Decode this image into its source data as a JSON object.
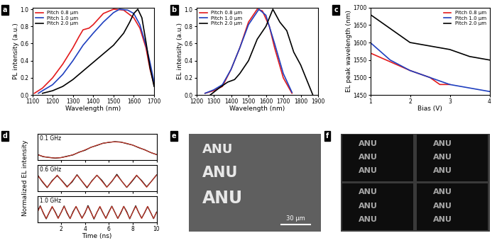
{
  "chart_data": [
    {
      "type": "line",
      "panel": "a",
      "xlabel": "Wavelength (nm)",
      "ylabel": "PL intensity (a.u.)",
      "xlim": [
        1100,
        1700
      ],
      "xticks": [
        1100,
        1200,
        1300,
        1400,
        1500,
        1600,
        1700
      ],
      "ylim": [
        0.0,
        1.02
      ],
      "yticks": [
        0.0,
        0.2,
        0.4,
        0.6,
        0.8,
        1.0
      ],
      "legend": "upper left",
      "series": [
        {
          "name": "Pitch 0.8 μm",
          "color": "#e31a1c",
          "x": [
            1110,
            1150,
            1200,
            1250,
            1300,
            1330,
            1350,
            1380,
            1400,
            1450,
            1500,
            1550,
            1600,
            1630,
            1660,
            1680,
            1700
          ],
          "values": [
            0.02,
            0.08,
            0.2,
            0.36,
            0.55,
            0.68,
            0.76,
            0.78,
            0.82,
            0.95,
            1.0,
            0.99,
            0.9,
            0.78,
            0.55,
            0.3,
            0.12
          ]
        },
        {
          "name": "Pitch 1.0 μm",
          "color": "#1f3fbf",
          "x": [
            1130,
            1150,
            1200,
            1250,
            1300,
            1350,
            1400,
            1450,
            1500,
            1530,
            1570,
            1600,
            1630,
            1660,
            1680,
            1700
          ],
          "values": [
            0.02,
            0.05,
            0.12,
            0.24,
            0.4,
            0.58,
            0.72,
            0.85,
            0.96,
            1.0,
            0.99,
            0.95,
            0.82,
            0.58,
            0.38,
            0.15
          ]
        },
        {
          "name": "Pitch 2.0 μm",
          "color": "#000000",
          "x": [
            1150,
            1200,
            1250,
            1300,
            1350,
            1400,
            1450,
            1500,
            1550,
            1580,
            1600,
            1620,
            1640,
            1660,
            1680,
            1700
          ],
          "values": [
            0.02,
            0.05,
            0.1,
            0.18,
            0.28,
            0.38,
            0.48,
            0.58,
            0.72,
            0.85,
            0.95,
            1.0,
            0.9,
            0.62,
            0.32,
            0.1
          ]
        }
      ]
    },
    {
      "type": "line",
      "panel": "b",
      "xlabel": "Wavelength (nm)",
      "ylabel": "EL intensity (a.u.)",
      "xlim": [
        1200,
        1900
      ],
      "xticks": [
        1200,
        1300,
        1400,
        1500,
        1600,
        1700,
        1800,
        1900
      ],
      "ylim": [
        0.0,
        1.02
      ],
      "yticks": [
        0.0,
        0.2,
        0.4,
        0.6,
        0.8,
        1.0
      ],
      "legend": "upper left",
      "series": [
        {
          "name": "Pitch 0.8 μm",
          "color": "#e31a1c",
          "x": [
            1250,
            1300,
            1350,
            1400,
            1450,
            1500,
            1550,
            1580,
            1620,
            1650,
            1700,
            1750
          ],
          "values": [
            0.02,
            0.05,
            0.1,
            0.3,
            0.55,
            0.85,
            1.0,
            0.98,
            0.8,
            0.55,
            0.2,
            0.02
          ]
        },
        {
          "name": "Pitch 1.0 μm",
          "color": "#1f3fbf",
          "x": [
            1250,
            1300,
            1350,
            1400,
            1450,
            1500,
            1560,
            1600,
            1650,
            1700,
            1750
          ],
          "values": [
            0.02,
            0.06,
            0.12,
            0.3,
            0.55,
            0.82,
            1.0,
            0.93,
            0.6,
            0.25,
            0.03
          ]
        },
        {
          "name": "Pitch 2.0 μm",
          "color": "#000000",
          "x": [
            1280,
            1330,
            1380,
            1420,
            1450,
            1500,
            1550,
            1600,
            1640,
            1680,
            1720,
            1760,
            1800,
            1850,
            1870
          ],
          "values": [
            0.0,
            0.08,
            0.15,
            0.18,
            0.25,
            0.4,
            0.65,
            0.8,
            1.0,
            0.85,
            0.75,
            0.5,
            0.35,
            0.1,
            0.0
          ]
        }
      ]
    },
    {
      "type": "line",
      "panel": "c",
      "xlabel": "Bias (V)",
      "ylabel": "EL peak wavelength (nm)",
      "xlim": [
        1,
        4
      ],
      "xticks": [
        1,
        2,
        3,
        4
      ],
      "ylim": [
        1450,
        1700
      ],
      "yticks": [
        1450,
        1500,
        1550,
        1600,
        1650,
        1700
      ],
      "legend": "upper right",
      "series": [
        {
          "name": "Pitch 0.8 μm",
          "color": "#e31a1c",
          "x": [
            1,
            1.5,
            2,
            2.5,
            2.75,
            3
          ],
          "values": [
            1570,
            1545,
            1520,
            1500,
            1480,
            1480
          ]
        },
        {
          "name": "Pitch 1.0 μm",
          "color": "#1f3fbf",
          "x": [
            1,
            1.5,
            2,
            2.5,
            3,
            3.5,
            4
          ],
          "values": [
            1600,
            1550,
            1520,
            1500,
            1480,
            1470,
            1460
          ]
        },
        {
          "name": "Pitch 2.0 μm",
          "color": "#000000",
          "x": [
            1,
            1.5,
            2,
            2.5,
            3,
            3.5,
            4
          ],
          "values": [
            1680,
            1640,
            1600,
            1590,
            1580,
            1560,
            1550
          ]
        }
      ]
    },
    {
      "type": "line_stack",
      "panel": "d",
      "xlabel": "Time (ns)",
      "ylabel": "Normalized EL intensity",
      "xlim": [
        0,
        10
      ],
      "xticks": [
        2,
        4,
        6,
        8,
        10
      ],
      "ylim": [
        0,
        1.3
      ],
      "tick_labels": "x",
      "panels": [
        {
          "annotation": "0.1 GHz",
          "x": [
            0,
            0.5,
            1,
            1.5,
            2,
            2.5,
            3,
            3.5,
            4,
            4.5,
            5,
            5.5,
            6,
            6.5,
            7,
            7.5,
            8,
            8.5,
            9,
            9.5,
            10
          ],
          "series": [
            {
              "color": "#000000",
              "values": [
                0.28,
                0.16,
                0.13,
                0.09,
                0.12,
                0.19,
                0.25,
                0.39,
                0.48,
                0.63,
                0.72,
                0.83,
                0.87,
                0.91,
                0.89,
                0.81,
                0.74,
                0.61,
                0.51,
                0.37,
                0.27
              ]
            },
            {
              "color": "#c0392b",
              "values": [
                0.265,
                0.176,
                0.12,
                0.1,
                0.12,
                0.176,
                0.265,
                0.376,
                0.5,
                0.624,
                0.735,
                0.824,
                0.88,
                0.9,
                0.88,
                0.824,
                0.735,
                0.624,
                0.5,
                0.376,
                0.265
              ]
            }
          ]
        },
        {
          "annotation": "0.6 GHz",
          "x": [
            0,
            0.42,
            0.83,
            1.25,
            1.67,
            2.08,
            2.5,
            2.92,
            3.33,
            3.75,
            4.17,
            4.58,
            5,
            5.42,
            5.83,
            6.25,
            6.67,
            7.08,
            7.5,
            7.92,
            8.33,
            8.75,
            9.17,
            9.58,
            10
          ],
          "series": [
            {
              "color": "#000000",
              "values": [
                0.83,
                0.47,
                0.18,
                0.53,
                0.77,
                0.52,
                0.23,
                0.46,
                0.82,
                0.49,
                0.17,
                0.52,
                0.79,
                0.54,
                0.21,
                0.48,
                0.84,
                0.5,
                0.19,
                0.47,
                0.78,
                0.53,
                0.22,
                0.5,
                0.81
              ]
            },
            {
              "color": "#c0392b",
              "values": [
                0.8,
                0.5,
                0.2,
                0.5,
                0.8,
                0.5,
                0.2,
                0.5,
                0.8,
                0.5,
                0.2,
                0.5,
                0.8,
                0.5,
                0.2,
                0.5,
                0.8,
                0.5,
                0.2,
                0.5,
                0.8,
                0.5,
                0.2,
                0.5,
                0.8
              ]
            }
          ]
        },
        {
          "annotation": "1.0 GHz",
          "x": [
            0,
            0.25,
            0.5,
            0.75,
            1,
            1.25,
            1.5,
            1.75,
            2,
            2.25,
            2.5,
            2.75,
            3,
            3.25,
            3.5,
            3.75,
            4,
            4.25,
            4.5,
            4.75,
            5,
            5.25,
            5.5,
            5.75,
            6,
            6.25,
            6.5,
            6.75,
            7,
            7.25,
            7.5,
            7.75,
            8,
            8.25,
            8.5,
            8.75,
            9,
            9.25,
            9.5,
            9.75,
            10
          ],
          "series": [
            {
              "color": "#000000",
              "values": [
                0.52,
                0.83,
                0.47,
                0.18,
                0.49,
                0.77,
                0.53,
                0.22,
                0.5,
                0.82,
                0.46,
                0.19,
                0.54,
                0.79,
                0.5,
                0.23,
                0.47,
                0.84,
                0.52,
                0.17,
                0.5,
                0.78,
                0.48,
                0.21,
                0.53,
                0.81,
                0.51,
                0.2,
                0.46,
                0.8,
                0.54,
                0.18,
                0.51,
                0.83,
                0.49,
                0.22,
                0.48,
                0.79,
                0.5,
                0.19,
                0.52
              ]
            },
            {
              "color": "#c0392b",
              "values": [
                0.5,
                0.8,
                0.5,
                0.2,
                0.5,
                0.8,
                0.5,
                0.2,
                0.5,
                0.8,
                0.5,
                0.2,
                0.5,
                0.8,
                0.5,
                0.2,
                0.5,
                0.8,
                0.5,
                0.2,
                0.5,
                0.8,
                0.5,
                0.2,
                0.5,
                0.8,
                0.5,
                0.2,
                0.5,
                0.8,
                0.5,
                0.2,
                0.5,
                0.8,
                0.5,
                0.2,
                0.5,
                0.8,
                0.5,
                0.2,
                0.5
              ]
            }
          ]
        }
      ]
    },
    {
      "type": "image",
      "panel": "e",
      "annotations": [
        "ANU",
        "ANU",
        "ANU"
      ],
      "scale_bar": "30 μm"
    },
    {
      "type": "image_grid",
      "panel": "f",
      "frames": [
        [
          "ANU",
          "ANU",
          "ANU"
        ],
        [
          "ANU",
          "ANU",
          "ANU"
        ],
        [
          "ANU",
          "ANU",
          "ANU"
        ],
        [
          "ANU",
          "ANU",
          "ANU"
        ]
      ]
    }
  ]
}
